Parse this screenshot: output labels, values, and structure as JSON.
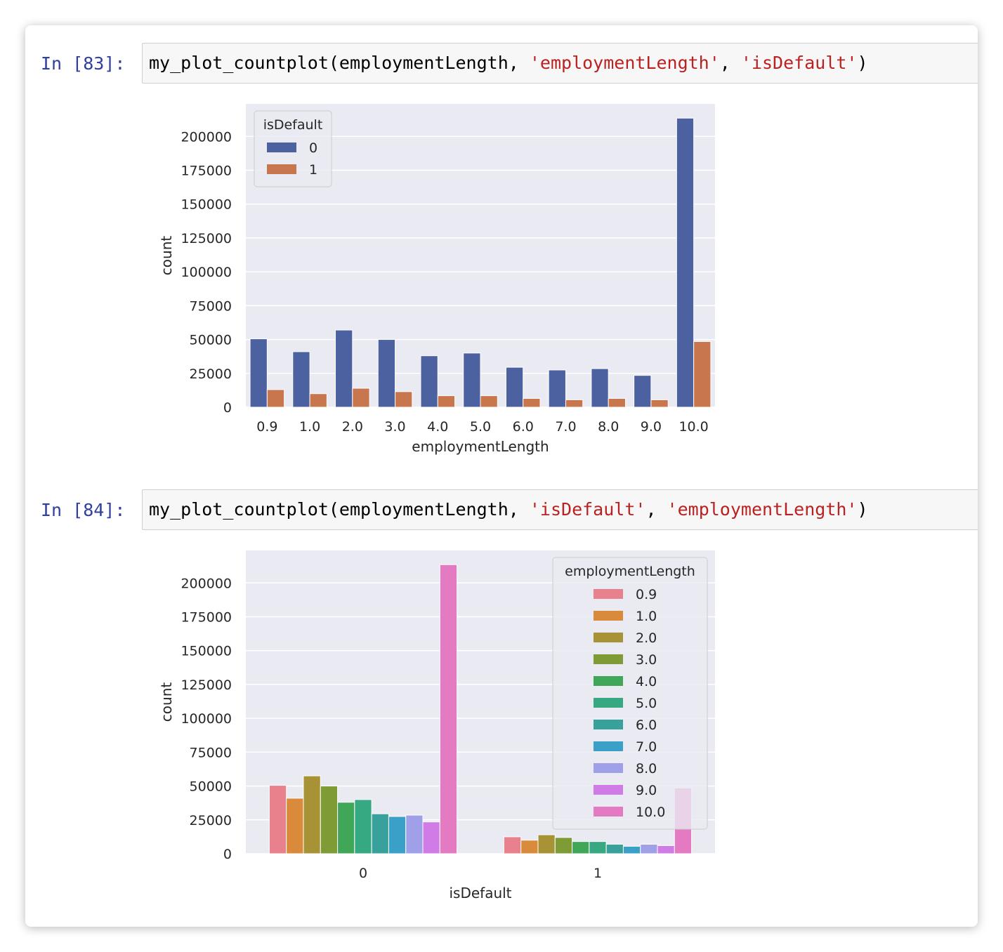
{
  "cells": [
    {
      "prompt": "In [83]:",
      "code": {
        "func": "my_plot_countplot(employmentLength, ",
        "arg1": "'employmentLength'",
        "sep": ", ",
        "arg2": "'isDefault'",
        "close": ")"
      }
    },
    {
      "prompt": "In [84]:",
      "code": {
        "func": "my_plot_countplot(employmentLength, ",
        "arg1": "'isDefault'",
        "sep": ", ",
        "arg2": "'employmentLength'",
        "close": ")"
      }
    }
  ],
  "chart_data": [
    {
      "type": "bar",
      "xlabel": "employmentLength",
      "ylabel": "count",
      "ylim": [
        0,
        224000
      ],
      "yticks": [
        "0",
        "25000",
        "50000",
        "75000",
        "100000",
        "125000",
        "150000",
        "175000",
        "200000"
      ],
      "categories": [
        "0.9",
        "1.0",
        "2.0",
        "3.0",
        "4.0",
        "5.0",
        "6.0",
        "7.0",
        "8.0",
        "9.0",
        "10.0"
      ],
      "legend": {
        "title": "isDefault",
        "placement": "upper-left"
      },
      "grid": true,
      "series": [
        {
          "name": "0",
          "color": "#4c61a0",
          "values": [
            50500,
            41000,
            57000,
            50000,
            38000,
            40000,
            29500,
            27500,
            28500,
            23500,
            213500
          ]
        },
        {
          "name": "1",
          "color": "#c8764d",
          "values": [
            13000,
            10000,
            14000,
            11500,
            8500,
            8500,
            6500,
            5500,
            6500,
            5500,
            48500
          ]
        }
      ]
    },
    {
      "type": "bar",
      "xlabel": "isDefault",
      "ylabel": "count",
      "ylim": [
        0,
        224000
      ],
      "yticks": [
        "0",
        "25000",
        "50000",
        "75000",
        "100000",
        "125000",
        "150000",
        "175000",
        "200000"
      ],
      "categories": [
        "0",
        "1"
      ],
      "legend": {
        "title": "employmentLength",
        "placement": "upper-right"
      },
      "grid": true,
      "series": [
        {
          "name": "0.9",
          "color": "#e8818b",
          "values": [
            50500,
            12500
          ]
        },
        {
          "name": "1.0",
          "color": "#d98b3b",
          "values": [
            41000,
            10000
          ]
        },
        {
          "name": "2.0",
          "color": "#a79336",
          "values": [
            57500,
            14000
          ]
        },
        {
          "name": "3.0",
          "color": "#7e9b36",
          "values": [
            50000,
            12000
          ]
        },
        {
          "name": "4.0",
          "color": "#3fa757",
          "values": [
            38000,
            9000
          ]
        },
        {
          "name": "5.0",
          "color": "#36a882",
          "values": [
            40000,
            9000
          ]
        },
        {
          "name": "6.0",
          "color": "#38a19b",
          "values": [
            29500,
            7000
          ]
        },
        {
          "name": "7.0",
          "color": "#3aa0c8",
          "values": [
            27500,
            5500
          ]
        },
        {
          "name": "8.0",
          "color": "#9fa0e8",
          "values": [
            28500,
            7000
          ]
        },
        {
          "name": "9.0",
          "color": "#d17be6",
          "values": [
            23500,
            6000
          ]
        },
        {
          "name": "10.0",
          "color": "#e47ac2",
          "values": [
            213500,
            48500
          ]
        }
      ]
    }
  ]
}
